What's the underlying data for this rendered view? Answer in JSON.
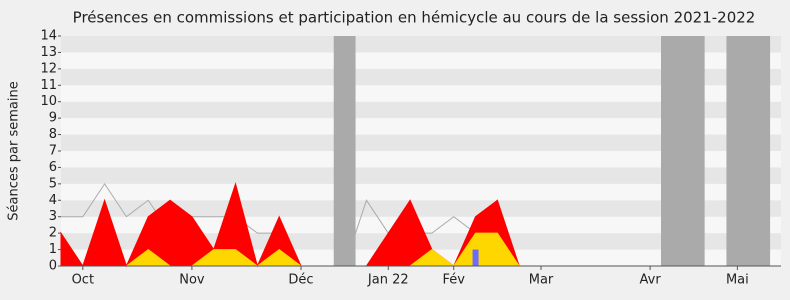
{
  "chart_data": {
    "type": "area",
    "title": "Présences en commissions et participation en hémicycle au cours de la session 2021-2022",
    "y_label": "Séances par semaine",
    "x": [
      0,
      1,
      2,
      3,
      4,
      5,
      6,
      7,
      8,
      9,
      10,
      11,
      12,
      13,
      14,
      15,
      16,
      17,
      18,
      19,
      20,
      21,
      22,
      23,
      24,
      25,
      26,
      27,
      28,
      29,
      30,
      31,
      32,
      33
    ],
    "xlim": [
      0,
      33
    ],
    "xticks": [
      {
        "value": 1,
        "label": "Oct"
      },
      {
        "value": 6,
        "label": "Nov"
      },
      {
        "value": 11,
        "label": "Déc"
      },
      {
        "value": 15,
        "label": "Jan 22"
      },
      {
        "value": 18,
        "label": "Fév"
      },
      {
        "value": 22,
        "label": "Mar"
      },
      {
        "value": 27,
        "label": "Avr"
      },
      {
        "value": 31,
        "label": "Mai"
      }
    ],
    "ylim": [
      0,
      14
    ],
    "yticks": [
      0,
      1,
      2,
      3,
      4,
      5,
      6,
      7,
      8,
      9,
      10,
      11,
      12,
      13,
      14
    ],
    "grid": true,
    "vacations": [
      [
        12.5,
        13.5
      ],
      [
        27.5,
        29.5
      ],
      [
        30.5,
        32.5
      ]
    ],
    "series": [
      {
        "kind": "line",
        "color": "#aaaaaa",
        "values": [
          3,
          3,
          5,
          3,
          4,
          2,
          3,
          3,
          3,
          2,
          2,
          0,
          0,
          0,
          4,
          2,
          2,
          2,
          3,
          2,
          4,
          0,
          null,
          null,
          null,
          null,
          null,
          null,
          null,
          null,
          null,
          null,
          null,
          null
        ]
      },
      {
        "kind": "area",
        "color": "#ff0000",
        "values": [
          2,
          0,
          4,
          0,
          3,
          4,
          3,
          1,
          5,
          0,
          3,
          0,
          0,
          0,
          0,
          2,
          4,
          1,
          0,
          3,
          4,
          0,
          0,
          0,
          0,
          0,
          0,
          0,
          0,
          0,
          0,
          0,
          0,
          0
        ]
      },
      {
        "kind": "area",
        "color": "#ffd700",
        "values": [
          0,
          0,
          0,
          0,
          1,
          0,
          0,
          1,
          1,
          0,
          1,
          0,
          0,
          0,
          0,
          0,
          0,
          1,
          0,
          2,
          2,
          0,
          0,
          0,
          0,
          0,
          0,
          0,
          0,
          0,
          0,
          0,
          0,
          0
        ]
      },
      {
        "kind": "bar",
        "color": "#6b6bff",
        "values": [
          0,
          0,
          0,
          0,
          0,
          0,
          0,
          0,
          0,
          0,
          0,
          0,
          0,
          0,
          0,
          0,
          0,
          0,
          0,
          1,
          0,
          0,
          0,
          0,
          0,
          0,
          0,
          0,
          0,
          0,
          0,
          0,
          0,
          0
        ]
      }
    ]
  }
}
